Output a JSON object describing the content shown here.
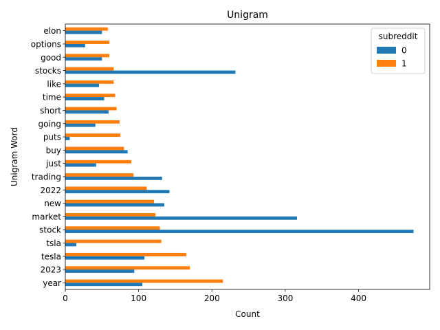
{
  "chart_data": {
    "type": "bar",
    "orientation": "horizontal",
    "title": "Unigram",
    "xlabel": "Count",
    "ylabel": "Unigram Word",
    "xlim": [
      0,
      497
    ],
    "xticks": [
      0,
      100,
      200,
      300,
      400
    ],
    "grid": false,
    "legend": {
      "title": "subreddit",
      "placement": "top-right"
    },
    "categories": [
      "year",
      "2023",
      "tesla",
      "tsla",
      "stock",
      "market",
      "new",
      "2022",
      "trading",
      "just",
      "buy",
      "puts",
      "going",
      "short",
      "time",
      "like",
      "stocks",
      "good",
      "options",
      "elon"
    ],
    "series": [
      {
        "name": "0",
        "color": "#1f77b4",
        "values": [
          105,
          94,
          108,
          15,
          475,
          316,
          135,
          142,
          132,
          42,
          85,
          6,
          41,
          59,
          53,
          46,
          232,
          50,
          27,
          50
        ]
      },
      {
        "name": "1",
        "color": "#ff7f0e",
        "values": [
          215,
          170,
          165,
          131,
          129,
          123,
          121,
          111,
          93,
          90,
          80,
          75,
          74,
          70,
          68,
          66,
          66,
          60,
          60,
          58
        ]
      }
    ]
  }
}
